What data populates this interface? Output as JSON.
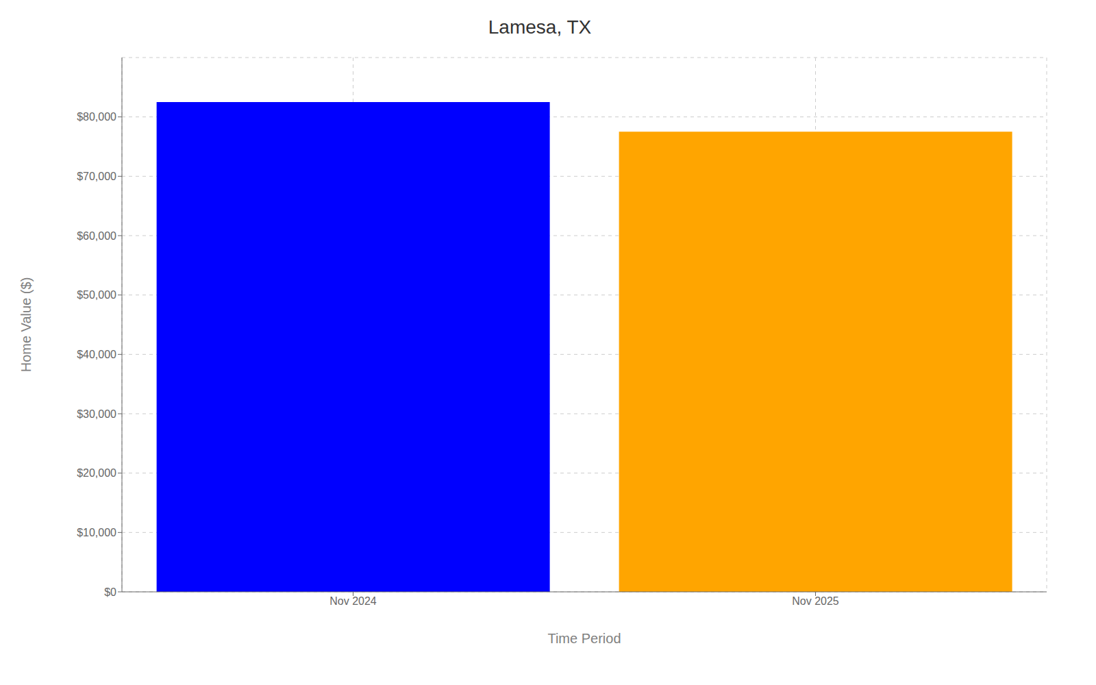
{
  "chart_data": {
    "type": "bar",
    "title": "Lamesa, TX",
    "categories": [
      "Nov 2024",
      "Nov 2025"
    ],
    "values": [
      82500,
      77500
    ],
    "colors": [
      "#0000FF",
      "#FFA500"
    ],
    "xlabel": "Time Period",
    "ylabel": "Home Value ($)",
    "ylim": [
      0,
      90000
    ],
    "yticks": [
      {
        "value": 0,
        "label": "$0"
      },
      {
        "value": 10000,
        "label": "$10,000"
      },
      {
        "value": 20000,
        "label": "$20,000"
      },
      {
        "value": 30000,
        "label": "$30,000"
      },
      {
        "value": 40000,
        "label": "$40,000"
      },
      {
        "value": 50000,
        "label": "$50,000"
      },
      {
        "value": 60000,
        "label": "$60,000"
      },
      {
        "value": 70000,
        "label": "$70,000"
      },
      {
        "value": 80000,
        "label": "$80,000"
      }
    ],
    "grid": true
  }
}
